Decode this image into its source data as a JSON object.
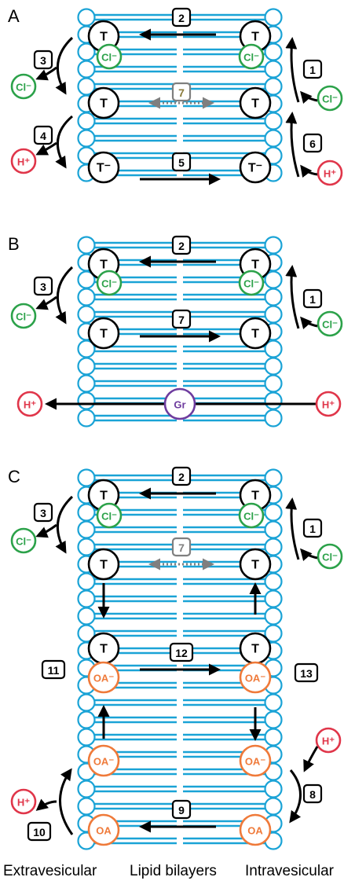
{
  "panels": [
    {
      "label": "A"
    },
    {
      "label": "B"
    },
    {
      "label": "C"
    }
  ],
  "footer": {
    "left": "Extravesicular",
    "center": "Lipid bilayers",
    "right": "Intravesicular"
  },
  "species": {
    "transporter": "T",
    "transporter_anion": "T⁻",
    "chloride": "Cl⁻",
    "proton": "H⁺",
    "gramicidin": "Gr",
    "oleate_anion": "OA⁻",
    "oleic_acid": "OA"
  },
  "steps": {
    "s1": "1",
    "s2": "2",
    "s3": "3",
    "s4": "4",
    "s5": "5",
    "s6": "6",
    "s7": "7",
    "s8": "8",
    "s9": "9",
    "s10": "10",
    "s11": "11",
    "s12": "12",
    "s13": "13"
  },
  "colors": {
    "lipid": "#1aa3d6",
    "chloride": "#2ca24a",
    "proton": "#e0364a",
    "gramicidin": "#6d3b9e",
    "oleate": "#ef7a3a",
    "grey_arrow": "#7f7f7f",
    "step7_text_a": "#8a7a3a"
  }
}
